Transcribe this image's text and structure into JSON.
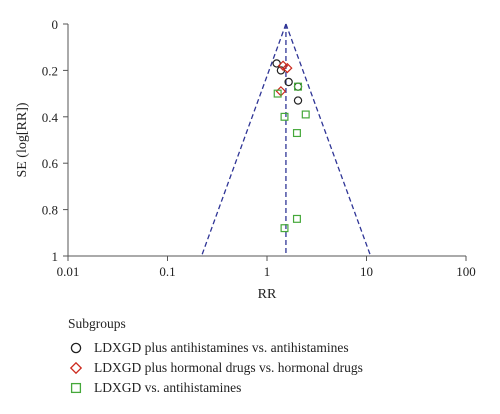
{
  "chart_data": {
    "type": "scatter",
    "chart_kind": "funnel plot",
    "title": "",
    "xlabel": "RR",
    "ylabel": "SE (log[RR])",
    "x_scale": "log",
    "xlim": [
      0.01,
      100
    ],
    "ylim": [
      1,
      0
    ],
    "y_inverted": true,
    "x_ticks": [
      "0.01",
      "0.1",
      "1",
      "10",
      "100"
    ],
    "x_tick_values": [
      0.01,
      0.1,
      1,
      10,
      100
    ],
    "y_ticks": [
      "0",
      "0.2",
      "0.4",
      "0.6",
      "0.8",
      "1"
    ],
    "y_tick_values": [
      0,
      0.2,
      0.4,
      0.6,
      0.8,
      1
    ],
    "grid": false,
    "pooled_estimate": 1.55,
    "funnel": {
      "apex": [
        1.55,
        0
      ],
      "base_left": [
        0.22,
        1
      ],
      "base_right": [
        11.0,
        1
      ]
    },
    "legend": {
      "title": "Subgroups",
      "placement": "bottom-left"
    },
    "series": [
      {
        "name": "LDXGD plus antihistamines vs. antihistamines",
        "marker": "circle",
        "color": "#222222",
        "points": [
          [
            1.25,
            0.17
          ],
          [
            1.38,
            0.2
          ],
          [
            1.65,
            0.25
          ],
          [
            2.05,
            0.33
          ],
          [
            2.05,
            0.27
          ]
        ]
      },
      {
        "name": "LDXGD plus hormonal drugs vs. hormonal drugs",
        "marker": "diamond",
        "color": "#cc2a1e",
        "points": [
          [
            1.45,
            0.18
          ],
          [
            1.6,
            0.19
          ],
          [
            1.38,
            0.29
          ]
        ]
      },
      {
        "name": "LDXGD vs. antihistamines",
        "marker": "square",
        "color": "#45a83a",
        "points": [
          [
            1.28,
            0.3
          ],
          [
            2.05,
            0.27
          ],
          [
            1.5,
            0.4
          ],
          [
            2.45,
            0.39
          ],
          [
            2.0,
            0.47
          ],
          [
            2.0,
            0.84
          ],
          [
            1.5,
            0.88
          ]
        ]
      }
    ]
  }
}
